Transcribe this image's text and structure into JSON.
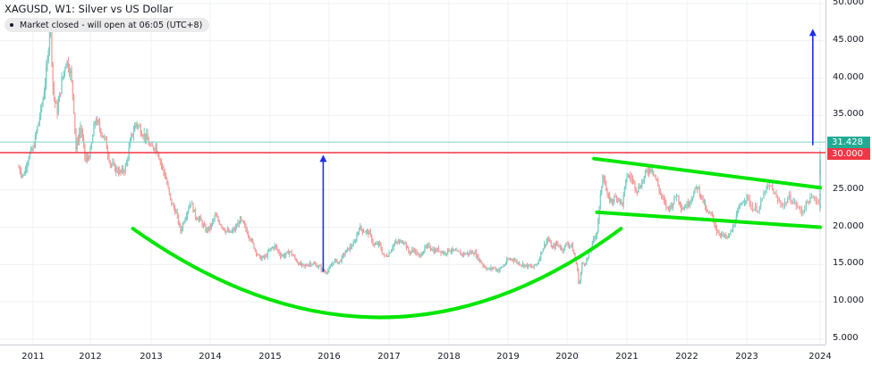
{
  "header": {
    "title": "XAGUSD, W1: Silver vs US Dollar",
    "status": "Market closed - will open at 06:05 (UTC+8)"
  },
  "colors": {
    "up": "#26a69a",
    "down": "#ef5350",
    "grid": "#f0f3fa",
    "axis": "#d1d4dc",
    "resistance_line": "#f23645",
    "last_price_line": "#22ab94",
    "pattern": "#00e600",
    "arrow": "#1e2ff0"
  },
  "price_labels": {
    "last_price": "31.428",
    "resistance": "30.000"
  },
  "chart_data": {
    "type": "candlestick",
    "title": "XAGUSD, W1: Silver vs US Dollar",
    "xlabel": "",
    "ylabel": "",
    "ylim": [
      3.5,
      50.5
    ],
    "grid": true,
    "y_ticks": [
      "50.000",
      "45.000",
      "40.000",
      "35.000",
      "30.000",
      "25.000",
      "20.000",
      "15.000",
      "10.000",
      "5.000"
    ],
    "x_ticks": [
      "2011",
      "2012",
      "2013",
      "2014",
      "2015",
      "2016",
      "2017",
      "2018",
      "2019",
      "2020",
      "2021",
      "2022",
      "2023",
      "2024"
    ],
    "x_tick_years": [
      2011,
      2012,
      2013,
      2014,
      2015,
      2016,
      2017,
      2018,
      2019,
      2020,
      2021,
      2022,
      2023,
      2024
    ],
    "xlim": [
      2010.6,
      2024.1
    ],
    "horizontal_lines": [
      {
        "name": "last price",
        "value": 31.428
      },
      {
        "name": "resistance",
        "value": 30.0
      }
    ],
    "annotations": [
      {
        "type": "arc",
        "name": "cup (rounded bottom)",
        "from": [
          2012.7,
          19.8
        ],
        "bottom": [
          2016.9,
          7.9
        ],
        "to": [
          2020.9,
          19.8
        ]
      },
      {
        "type": "line",
        "name": "channel upper",
        "from": [
          2020.45,
          29.2
        ],
        "to": [
          2024.0,
          25.3
        ]
      },
      {
        "type": "line",
        "name": "channel lower",
        "from": [
          2020.5,
          22.0
        ],
        "to": [
          2024.0,
          20.0
        ]
      },
      {
        "type": "arrow",
        "name": "cup depth measure",
        "from": [
          2015.9,
          14.0
        ],
        "to": [
          2015.9,
          29.6
        ]
      },
      {
        "type": "arrow",
        "name": "projected target",
        "from": [
          2023.9,
          31.0
        ],
        "to": [
          2023.9,
          46.5
        ]
      }
    ],
    "series": [
      {
        "name": "XAGUSD weekly close (approx)",
        "points": [
          [
            2010.75,
            28.0
          ],
          [
            2010.83,
            26.8
          ],
          [
            2010.92,
            29.5
          ],
          [
            2011.0,
            30.5
          ],
          [
            2011.08,
            33.5
          ],
          [
            2011.17,
            37.0
          ],
          [
            2011.25,
            42.0
          ],
          [
            2011.3,
            48.5
          ],
          [
            2011.35,
            38.0
          ],
          [
            2011.42,
            35.5
          ],
          [
            2011.5,
            39.5
          ],
          [
            2011.58,
            42.5
          ],
          [
            2011.65,
            41.0
          ],
          [
            2011.7,
            37.5
          ],
          [
            2011.75,
            30.5
          ],
          [
            2011.83,
            33.5
          ],
          [
            2011.92,
            28.8
          ],
          [
            2012.0,
            30.0
          ],
          [
            2012.08,
            34.5
          ],
          [
            2012.17,
            33.0
          ],
          [
            2012.25,
            31.5
          ],
          [
            2012.33,
            28.5
          ],
          [
            2012.42,
            27.8
          ],
          [
            2012.5,
            27.3
          ],
          [
            2012.58,
            28.0
          ],
          [
            2012.67,
            32.0
          ],
          [
            2012.75,
            34.0
          ],
          [
            2012.83,
            33.0
          ],
          [
            2012.92,
            32.0
          ],
          [
            2013.0,
            30.5
          ],
          [
            2013.08,
            31.0
          ],
          [
            2013.17,
            28.5
          ],
          [
            2013.25,
            26.5
          ],
          [
            2013.33,
            23.5
          ],
          [
            2013.42,
            22.0
          ],
          [
            2013.5,
            19.5
          ],
          [
            2013.58,
            21.5
          ],
          [
            2013.67,
            23.5
          ],
          [
            2013.75,
            21.5
          ],
          [
            2013.83,
            21.0
          ],
          [
            2013.92,
            19.6
          ],
          [
            2014.0,
            19.9
          ],
          [
            2014.08,
            21.5
          ],
          [
            2014.17,
            20.5
          ],
          [
            2014.25,
            19.6
          ],
          [
            2014.33,
            19.2
          ],
          [
            2014.42,
            19.8
          ],
          [
            2014.5,
            21.0
          ],
          [
            2014.58,
            20.0
          ],
          [
            2014.67,
            18.5
          ],
          [
            2014.75,
            17.0
          ],
          [
            2014.83,
            15.8
          ],
          [
            2014.92,
            16.0
          ],
          [
            2015.0,
            17.0
          ],
          [
            2015.08,
            17.5
          ],
          [
            2015.17,
            16.3
          ],
          [
            2015.25,
            16.2
          ],
          [
            2015.33,
            16.8
          ],
          [
            2015.42,
            15.8
          ],
          [
            2015.5,
            15.0
          ],
          [
            2015.58,
            14.7
          ],
          [
            2015.67,
            15.2
          ],
          [
            2015.75,
            15.0
          ],
          [
            2015.83,
            14.7
          ],
          [
            2015.92,
            14.0
          ],
          [
            2016.0,
            14.3
          ],
          [
            2016.08,
            15.5
          ],
          [
            2016.17,
            15.3
          ],
          [
            2016.25,
            16.4
          ],
          [
            2016.33,
            17.2
          ],
          [
            2016.42,
            17.8
          ],
          [
            2016.5,
            20.0
          ],
          [
            2016.58,
            19.5
          ],
          [
            2016.67,
            19.2
          ],
          [
            2016.75,
            17.5
          ],
          [
            2016.83,
            17.8
          ],
          [
            2016.92,
            16.0
          ],
          [
            2017.0,
            16.5
          ],
          [
            2017.08,
            17.8
          ],
          [
            2017.17,
            18.0
          ],
          [
            2017.25,
            18.2
          ],
          [
            2017.33,
            16.6
          ],
          [
            2017.42,
            17.0
          ],
          [
            2017.5,
            16.0
          ],
          [
            2017.58,
            17.0
          ],
          [
            2017.67,
            17.5
          ],
          [
            2017.75,
            16.8
          ],
          [
            2017.83,
            17.0
          ],
          [
            2017.92,
            16.5
          ],
          [
            2018.0,
            17.0
          ],
          [
            2018.08,
            16.8
          ],
          [
            2018.17,
            16.5
          ],
          [
            2018.25,
            16.4
          ],
          [
            2018.33,
            16.5
          ],
          [
            2018.42,
            16.7
          ],
          [
            2018.5,
            15.8
          ],
          [
            2018.58,
            14.9
          ],
          [
            2018.67,
            14.3
          ],
          [
            2018.75,
            14.6
          ],
          [
            2018.83,
            14.2
          ],
          [
            2018.92,
            14.8
          ],
          [
            2019.0,
            15.6
          ],
          [
            2019.08,
            15.8
          ],
          [
            2019.17,
            15.2
          ],
          [
            2019.25,
            15.0
          ],
          [
            2019.33,
            14.8
          ],
          [
            2019.42,
            14.6
          ],
          [
            2019.5,
            15.2
          ],
          [
            2019.58,
            17.0
          ],
          [
            2019.67,
            18.5
          ],
          [
            2019.75,
            17.2
          ],
          [
            2019.83,
            17.8
          ],
          [
            2019.92,
            17.0
          ],
          [
            2020.0,
            17.8
          ],
          [
            2020.08,
            17.5
          ],
          [
            2020.17,
            14.5
          ],
          [
            2020.2,
            12.0
          ],
          [
            2020.25,
            15.0
          ],
          [
            2020.33,
            15.5
          ],
          [
            2020.42,
            17.7
          ],
          [
            2020.5,
            19.5
          ],
          [
            2020.55,
            23.5
          ],
          [
            2020.6,
            27.5
          ],
          [
            2020.67,
            24.0
          ],
          [
            2020.75,
            23.5
          ],
          [
            2020.83,
            24.2
          ],
          [
            2020.92,
            23.0
          ],
          [
            2021.0,
            27.0
          ],
          [
            2021.08,
            26.5
          ],
          [
            2021.17,
            25.0
          ],
          [
            2021.25,
            26.0
          ],
          [
            2021.33,
            27.5
          ],
          [
            2021.42,
            28.0
          ],
          [
            2021.5,
            26.0
          ],
          [
            2021.58,
            24.0
          ],
          [
            2021.67,
            22.5
          ],
          [
            2021.75,
            23.0
          ],
          [
            2021.83,
            24.5
          ],
          [
            2021.92,
            22.5
          ],
          [
            2022.0,
            23.0
          ],
          [
            2022.08,
            24.0
          ],
          [
            2022.17,
            25.5
          ],
          [
            2022.25,
            24.0
          ],
          [
            2022.33,
            22.0
          ],
          [
            2022.42,
            21.5
          ],
          [
            2022.5,
            19.5
          ],
          [
            2022.58,
            19.0
          ],
          [
            2022.67,
            18.5
          ],
          [
            2022.75,
            19.5
          ],
          [
            2022.83,
            21.5
          ],
          [
            2022.92,
            23.5
          ],
          [
            2023.0,
            24.0
          ],
          [
            2023.08,
            22.5
          ],
          [
            2023.17,
            22.5
          ],
          [
            2023.25,
            25.0
          ],
          [
            2023.33,
            25.5
          ],
          [
            2023.42,
            23.5
          ],
          [
            2023.5,
            23.0
          ],
          [
            2023.58,
            24.0
          ],
          [
            2023.67,
            23.0
          ],
          [
            2023.75,
            22.0
          ],
          [
            2023.83,
            23.5
          ],
          [
            2023.92,
            24.0
          ],
          [
            2024.0,
            23.0
          ],
          [
            2024.08,
            22.5
          ],
          [
            2024.17,
            24.5
          ],
          [
            2024.25,
            27.0
          ],
          [
            2024.33,
            28.8
          ],
          [
            2024.37,
            26.5
          ],
          [
            2024.42,
            31.4
          ]
        ]
      }
    ]
  }
}
